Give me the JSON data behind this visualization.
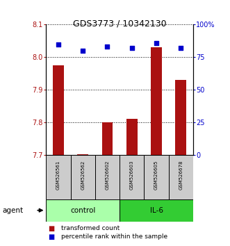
{
  "title": "GDS3773 / 10342130",
  "samples": [
    "GSM526561",
    "GSM526562",
    "GSM526602",
    "GSM526603",
    "GSM526605",
    "GSM526678"
  ],
  "transformed_counts": [
    7.975,
    7.702,
    7.8,
    7.81,
    8.03,
    7.93
  ],
  "percentile_ranks": [
    85,
    80,
    83,
    82,
    86,
    82
  ],
  "ylim_left": [
    7.7,
    8.1
  ],
  "ylim_right": [
    0,
    100
  ],
  "yticks_left": [
    7.7,
    7.8,
    7.9,
    8.0,
    8.1
  ],
  "yticks_right": [
    0,
    25,
    50,
    75,
    100
  ],
  "ytick_labels_right": [
    "0",
    "25",
    "50",
    "75",
    "100%"
  ],
  "bar_color": "#aa1111",
  "dot_color": "#0000cc",
  "control_color": "#aaffaa",
  "il6_color": "#33cc33",
  "sample_bg_color": "#cccccc",
  "legend_bar_label": "transformed count",
  "legend_dot_label": "percentile rank within the sample",
  "agent_label": "agent",
  "n_control": 3,
  "n_il6": 3
}
